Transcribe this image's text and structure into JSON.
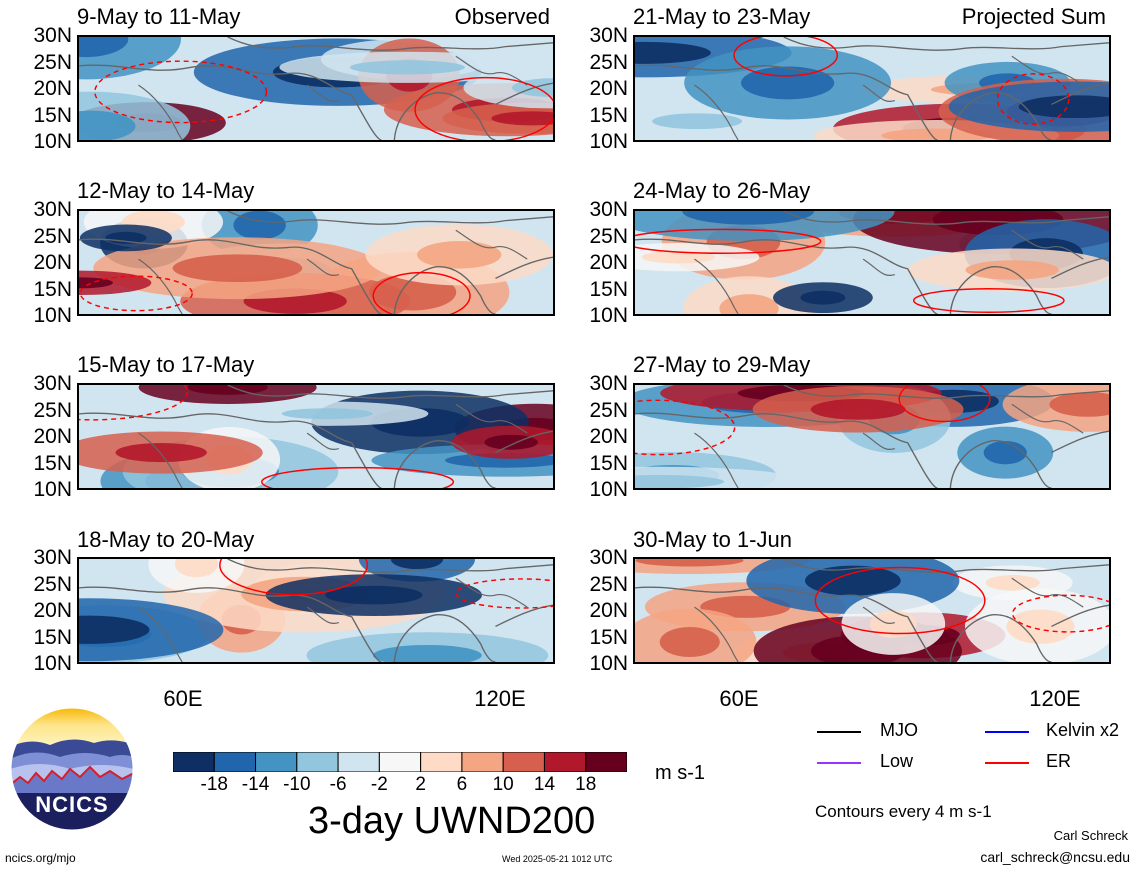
{
  "panels": [
    {
      "label": "9-May to 11-May",
      "tag": "Observed",
      "col": 0,
      "row": 0,
      "seed": 1
    },
    {
      "label": "12-May to 14-May",
      "tag": "",
      "col": 0,
      "row": 1,
      "seed": 2
    },
    {
      "label": "15-May to 17-May",
      "tag": "",
      "col": 0,
      "row": 2,
      "seed": 3
    },
    {
      "label": "18-May to 20-May",
      "tag": "",
      "col": 0,
      "row": 3,
      "seed": 4
    },
    {
      "label": "21-May to 23-May",
      "tag": "Projected Sum",
      "col": 1,
      "row": 0,
      "seed": 5
    },
    {
      "label": "24-May to 26-May",
      "tag": "",
      "col": 1,
      "row": 1,
      "seed": 6
    },
    {
      "label": "27-May to 29-May",
      "tag": "",
      "col": 1,
      "row": 2,
      "seed": 7
    },
    {
      "label": "30-May to 1-Jun",
      "tag": "",
      "col": 1,
      "row": 3,
      "seed": 8
    }
  ],
  "lat_labels": [
    "30N",
    "25N",
    "20N",
    "15N",
    "10N"
  ],
  "lon_labels": [
    "60E",
    "120E"
  ],
  "colorbar": {
    "ticks": [
      "-18",
      "-14",
      "-10",
      "-6",
      "-2",
      "2",
      "6",
      "10",
      "14",
      "18"
    ],
    "colors": [
      "#0d2f63",
      "#2166ac",
      "#4393c3",
      "#92c5de",
      "#d1e5f0",
      "#f7f7f7",
      "#fddbc7",
      "#f4a582",
      "#d6604d",
      "#b2182b",
      "#67001f"
    ],
    "units": "m s-1"
  },
  "main_title": "3-day UWND200",
  "legend": [
    {
      "label": "MJO",
      "color": "#000000"
    },
    {
      "label": "Kelvin x2",
      "color": "#0000ff"
    },
    {
      "label": "Low",
      "color": "#9933ff"
    },
    {
      "label": "ER",
      "color": "#ff0000"
    }
  ],
  "contour_note": "Contours every 4 m s-1",
  "author": "Carl Schreck",
  "email": "carl_schreck@ncsu.edu",
  "website": "ncics.org/mjo",
  "timestamp": "Wed 2025-05-21 1012 UTC",
  "logo_text": "NCICS"
}
